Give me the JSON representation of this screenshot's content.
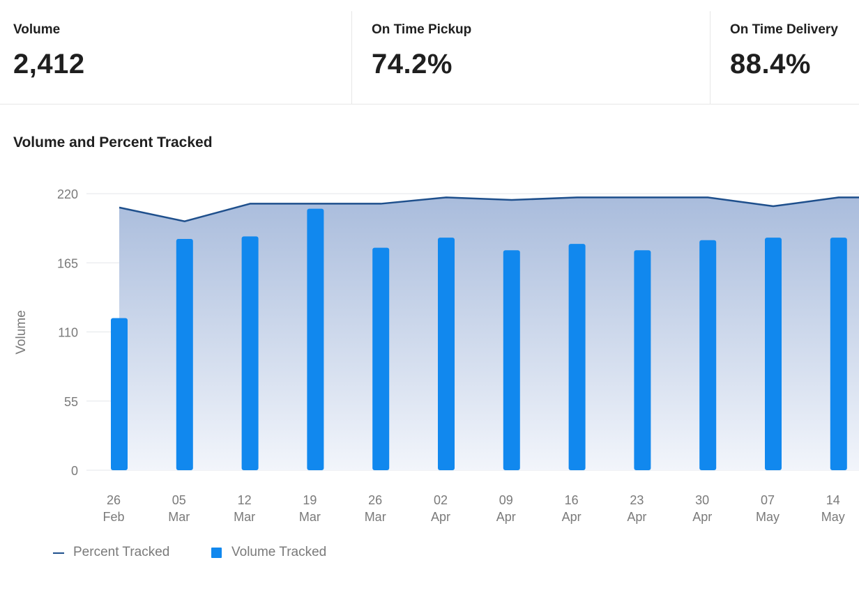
{
  "kpis": [
    {
      "label": "Volume",
      "value": "2,412"
    },
    {
      "label": "On Time Pickup",
      "value": "74.2%"
    },
    {
      "label": "On Time Delivery",
      "value": "88.4%"
    }
  ],
  "colors": {
    "bar": "#1188ee",
    "line": "#1e4f8c",
    "area_top": "#a9bcdc",
    "area_bottom": "#f2f5fb",
    "grid": "#e3e6ea",
    "tick_text": "#7a7a7a"
  },
  "chart_data": {
    "type": "bar",
    "title": "Volume and Percent Tracked",
    "xlabel": "",
    "ylabel": "Volume",
    "ylim": [
      0,
      220
    ],
    "yticks": [
      0,
      55,
      110,
      165,
      220
    ],
    "grid": true,
    "legend_position": "bottom-left",
    "categories": [
      [
        "26",
        "Feb"
      ],
      [
        "05",
        "Mar"
      ],
      [
        "12",
        "Mar"
      ],
      [
        "19",
        "Mar"
      ],
      [
        "26",
        "Mar"
      ],
      [
        "02",
        "Apr"
      ],
      [
        "09",
        "Apr"
      ],
      [
        "16",
        "Apr"
      ],
      [
        "23",
        "Apr"
      ],
      [
        "30",
        "Apr"
      ],
      [
        "07",
        "May"
      ],
      [
        "14",
        "May"
      ]
    ],
    "series": [
      {
        "name": "Percent Tracked",
        "type": "area-line",
        "values": [
          209,
          198,
          212,
          212,
          212,
          217,
          215,
          217,
          217,
          217,
          210,
          217
        ]
      },
      {
        "name": "Volume Tracked",
        "type": "bar",
        "values": [
          121,
          184,
          186,
          208,
          177,
          185,
          175,
          180,
          175,
          183,
          185,
          185
        ]
      }
    ]
  }
}
